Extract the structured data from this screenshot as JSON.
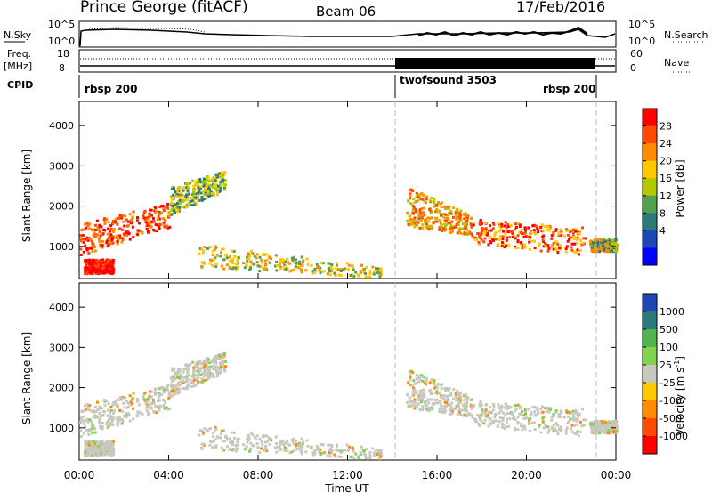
{
  "header": {
    "station": "Prince George (fitACF)",
    "beam": "Beam 06",
    "date": "17/Feb/2016"
  },
  "panels": {
    "nsky_label": "N.Sky",
    "nsky_ticks": [
      "10^5",
      "10^0"
    ],
    "nsearch_label": "N.Search",
    "nsearch_ticks": [
      "10^5",
      "10^0"
    ],
    "freq_label": "Freq.",
    "freq_unit": "[MHz]",
    "freq_ticks": [
      "18",
      "8"
    ],
    "nave_label": "Nave",
    "nave_ticks": [
      "60",
      "0"
    ],
    "cpid_label": "CPID",
    "cpid_segments": [
      {
        "name": "rbsp 200",
        "start": 0,
        "end": 14.0
      },
      {
        "name": "twofsound 3503",
        "start": 14.0,
        "end": 23.0
      },
      {
        "name": "rbsp 200",
        "start": 23.0,
        "end": 24.0
      }
    ]
  },
  "chart_data": [
    {
      "type": "heatmap",
      "name": "power",
      "ylabel": "Slant Range [km]",
      "xlabel": "Time UT",
      "xlim": [
        0,
        24
      ],
      "ylim": [
        200,
        4600
      ],
      "x_tick_labels": [
        "00:00",
        "04:00",
        "08:00",
        "12:00",
        "16:00",
        "20:00",
        "00:00"
      ],
      "y_tick_labels": [
        "1000",
        "2000",
        "3000",
        "4000"
      ],
      "colorbar_label": "Power [dB]",
      "colorbar_ticks": [
        "28",
        "24",
        "20",
        "16",
        "12",
        "8",
        "4"
      ],
      "colorbar_colors": [
        "#ff0000",
        "#ff4a00",
        "#ff8c00",
        "#ffc800",
        "#b4c800",
        "#50a050",
        "#2a7a7a",
        "#1e46b4",
        "#0000ff"
      ],
      "features": [
        {
          "t_start": 0.0,
          "t_end": 4.0,
          "range_start": 900,
          "range_end": 1900
        },
        {
          "t_start": 5.3,
          "t_end": 13.5,
          "range_start": 300,
          "range_end": 1000
        },
        {
          "t_start": 14.6,
          "t_end": 22.5,
          "range_start": 900,
          "range_end": 2500
        }
      ]
    },
    {
      "type": "heatmap",
      "name": "velocity",
      "ylabel": "Slant Range [km]",
      "xlabel": "Time UT",
      "xlim": [
        0,
        24
      ],
      "ylim": [
        200,
        4600
      ],
      "x_tick_labels": [
        "00:00",
        "04:00",
        "08:00",
        "12:00",
        "16:00",
        "20:00",
        "00:00"
      ],
      "y_tick_labels": [
        "1000",
        "2000",
        "3000",
        "4000"
      ],
      "colorbar_label": "Velocity [m s",
      "colorbar_label_sup": "-1",
      "colorbar_ticks": [
        "1000",
        "500",
        "100",
        "25",
        "-25",
        "-100",
        "-500",
        "-1000"
      ],
      "colorbar_colors": [
        "#1e46b4",
        "#2a7a7a",
        "#50b450",
        "#82d250",
        "#c8c8c0",
        "#ffc800",
        "#ff8c00",
        "#ff4a00",
        "#ff0000"
      ]
    }
  ]
}
